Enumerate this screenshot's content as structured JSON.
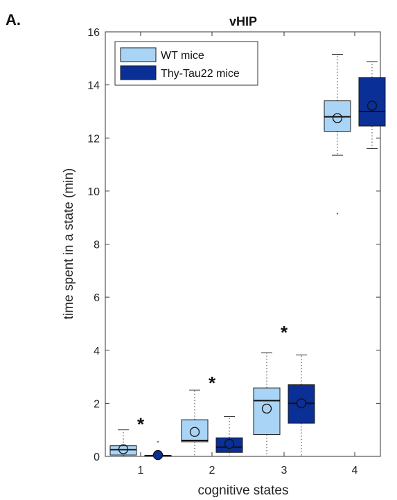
{
  "panel_label": "A.",
  "chart_data": {
    "type": "box",
    "title": "vHIP",
    "xlabel": "cognitive states",
    "ylabel": "time spent in a state (min)",
    "categories": [
      "1",
      "2",
      "3",
      "4"
    ],
    "ylim": [
      0,
      16
    ],
    "yticks": [
      "0",
      "2",
      "4",
      "6",
      "8",
      "10",
      "12",
      "14",
      "16"
    ],
    "legend_position": "top-left",
    "colors": {
      "wt": "#a9d4f5",
      "tau": "#0a2f96",
      "border": "#1a1a1a"
    },
    "series": [
      {
        "name": "WT mice",
        "boxes": [
          {
            "whisker_low": 0,
            "q1": 0.05,
            "median": 0.25,
            "q3": 0.4,
            "whisker_high": 1.0,
            "mean": 0.27,
            "outliers": []
          },
          {
            "whisker_low": 0,
            "q1": 0.55,
            "median": 0.6,
            "q3": 1.38,
            "whisker_high": 2.5,
            "mean": 0.92,
            "outliers": []
          },
          {
            "whisker_low": 0,
            "q1": 0.82,
            "median": 2.1,
            "q3": 2.58,
            "whisker_high": 3.9,
            "mean": 1.8,
            "outliers": []
          },
          {
            "whisker_low": 11.35,
            "q1": 12.25,
            "median": 12.8,
            "q3": 13.4,
            "whisker_high": 15.15,
            "mean": 12.75,
            "outliers": [
              9.15
            ]
          }
        ]
      },
      {
        "name": "Thy-Tau22 mice",
        "boxes": [
          {
            "whisker_low": 0,
            "q1": 0.0,
            "median": 0.02,
            "q3": 0.04,
            "whisker_high": 0.05,
            "mean": 0.05,
            "outliers": [
              0.55
            ]
          },
          {
            "whisker_low": 0,
            "q1": 0.15,
            "median": 0.35,
            "q3": 0.7,
            "whisker_high": 1.5,
            "mean": 0.47,
            "outliers": []
          },
          {
            "whisker_low": 0,
            "q1": 1.25,
            "median": 2.0,
            "q3": 2.7,
            "whisker_high": 3.82,
            "mean": 2.0,
            "outliers": []
          },
          {
            "whisker_low": 11.6,
            "q1": 12.45,
            "median": 13.0,
            "q3": 14.28,
            "whisker_high": 14.88,
            "mean": 13.22,
            "outliers": []
          }
        ]
      }
    ],
    "significance": [
      {
        "category": "1",
        "label": "*",
        "y": 1.35
      },
      {
        "category": "2",
        "label": "*",
        "y": 2.9
      },
      {
        "category": "3",
        "label": "*",
        "y": 4.8
      }
    ]
  }
}
